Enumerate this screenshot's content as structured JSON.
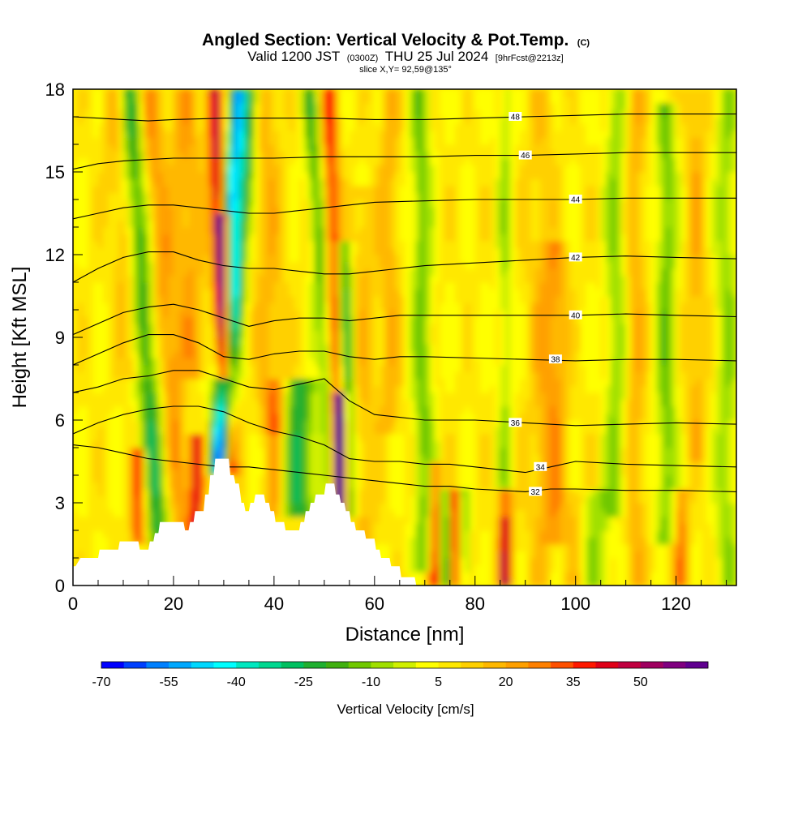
{
  "title": {
    "main": "Angled Section: Vertical Velocity & Pot.Temp.",
    "main_suffix": "(C)",
    "valid_prefix": "Valid 1200 JST",
    "valid_z": "(0300Z)",
    "valid_date": "THU 25 Jul 2024",
    "fcst": "[9hrFcst@2213z]",
    "slice": "slice X,Y= 92,59@135°"
  },
  "chart_data": {
    "type": "heatmap",
    "xlabel": "Distance [nm]",
    "ylabel": "Height [Kft MSL]",
    "xlim": [
      0,
      132
    ],
    "ylim": [
      0,
      18
    ],
    "x_ticks": [
      "0",
      "20",
      "40",
      "60",
      "80",
      "100",
      "120"
    ],
    "x_tick_values": [
      0,
      20,
      40,
      60,
      80,
      100,
      120
    ],
    "y_ticks": [
      "0",
      "3",
      "6",
      "9",
      "12",
      "15",
      "18"
    ],
    "y_tick_values": [
      0,
      3,
      6,
      9,
      12,
      15,
      18
    ],
    "colorbar": {
      "label": "Vertical Velocity [cm/s]",
      "tick_labels": [
        "-70",
        "-55",
        "-40",
        "-25",
        "-10",
        "5",
        "20",
        "35",
        "50"
      ],
      "tick_values": [
        -70,
        -55,
        -40,
        -25,
        -10,
        5,
        20,
        35,
        50
      ],
      "levels": [
        -70,
        -65,
        -60,
        -55,
        -50,
        -45,
        -40,
        -35,
        -30,
        -25,
        -20,
        -15,
        -10,
        -5,
        0,
        5,
        10,
        15,
        20,
        25,
        30,
        35,
        40,
        45,
        50,
        55,
        60
      ],
      "colors": [
        "#0000ff",
        "#0040ff",
        "#0080ff",
        "#00a8ff",
        "#00d8ff",
        "#00ffff",
        "#00e8c0",
        "#00d890",
        "#00c060",
        "#20b030",
        "#40b010",
        "#70c800",
        "#a0e000",
        "#d0f000",
        "#ffff00",
        "#ffe800",
        "#ffd000",
        "#ffb800",
        "#ffa000",
        "#ff8000",
        "#ff5000",
        "#ff1800",
        "#e00018",
        "#c00040",
        "#a00060",
        "#800080",
        "#600090"
      ]
    },
    "terrain": [
      [
        0,
        0.7
      ],
      [
        0.5,
        0.7
      ],
      [
        1.5,
        1.0
      ],
      [
        5,
        1.0
      ],
      [
        5.3,
        1.3
      ],
      [
        9,
        1.3
      ],
      [
        9.3,
        1.6
      ],
      [
        13,
        1.6
      ],
      [
        13.3,
        1.3
      ],
      [
        15,
        1.3
      ],
      [
        15.3,
        1.6
      ],
      [
        16,
        1.6
      ],
      [
        16.3,
        1.9
      ],
      [
        17,
        1.9
      ],
      [
        17.3,
        2.3
      ],
      [
        22,
        2.3
      ],
      [
        22.3,
        2.0
      ],
      [
        23,
        2.0
      ],
      [
        23.3,
        2.3
      ],
      [
        24,
        2.3
      ],
      [
        24.3,
        2.7
      ],
      [
        26,
        2.7
      ],
      [
        26.3,
        3.3
      ],
      [
        27,
        3.3
      ],
      [
        27.3,
        4.0
      ],
      [
        28,
        4.0
      ],
      [
        28.3,
        4.6
      ],
      [
        31,
        4.6
      ],
      [
        31.3,
        4.0
      ],
      [
        32,
        4.0
      ],
      [
        32.3,
        3.7
      ],
      [
        33,
        3.7
      ],
      [
        33.3,
        3.3
      ],
      [
        33.5,
        3.0
      ],
      [
        34,
        3.0
      ],
      [
        34.3,
        2.7
      ],
      [
        35,
        2.7
      ],
      [
        35.3,
        3.0
      ],
      [
        36,
        3.0
      ],
      [
        36.3,
        3.3
      ],
      [
        38,
        3.3
      ],
      [
        38.3,
        3.0
      ],
      [
        39,
        3.0
      ],
      [
        39.3,
        2.7
      ],
      [
        40,
        2.7
      ],
      [
        40.3,
        2.3
      ],
      [
        42,
        2.3
      ],
      [
        42.3,
        2.0
      ],
      [
        45,
        2.0
      ],
      [
        45.3,
        2.3
      ],
      [
        46,
        2.3
      ],
      [
        46.3,
        2.7
      ],
      [
        47,
        2.7
      ],
      [
        47.3,
        3.0
      ],
      [
        48,
        3.0
      ],
      [
        48.3,
        3.3
      ],
      [
        50,
        3.3
      ],
      [
        50.3,
        3.7
      ],
      [
        52,
        3.7
      ],
      [
        52.3,
        3.3
      ],
      [
        53,
        3.3
      ],
      [
        53.3,
        3.0
      ],
      [
        54,
        3.0
      ],
      [
        54.3,
        2.7
      ],
      [
        55,
        2.7
      ],
      [
        55.3,
        2.3
      ],
      [
        56,
        2.3
      ],
      [
        56.3,
        2.0
      ],
      [
        58,
        2.0
      ],
      [
        58.3,
        1.7
      ],
      [
        60,
        1.7
      ],
      [
        60.3,
        1.3
      ],
      [
        61,
        1.3
      ],
      [
        61.3,
        1.0
      ],
      [
        63,
        1.0
      ],
      [
        63.3,
        0.7
      ],
      [
        65,
        0.7
      ],
      [
        65.3,
        0.3
      ],
      [
        68,
        0.3
      ],
      [
        68.3,
        0
      ],
      [
        132,
        0
      ]
    ],
    "isentropes": [
      {
        "label": "32",
        "label_at": [
          92,
          3.4
        ],
        "points": [
          [
            0,
            5.1
          ],
          [
            5,
            5.0
          ],
          [
            10,
            4.8
          ],
          [
            15,
            4.6
          ],
          [
            20,
            4.5
          ],
          [
            25,
            4.4
          ],
          [
            30,
            4.3
          ],
          [
            35,
            4.3
          ],
          [
            40,
            4.2
          ],
          [
            45,
            4.1
          ],
          [
            50,
            4.0
          ],
          [
            55,
            3.9
          ],
          [
            60,
            3.8
          ],
          [
            65,
            3.7
          ],
          [
            70,
            3.6
          ],
          [
            75,
            3.6
          ],
          [
            80,
            3.5
          ],
          [
            85,
            3.45
          ],
          [
            90,
            3.4
          ],
          [
            95,
            3.5
          ],
          [
            100,
            3.5
          ],
          [
            110,
            3.45
          ],
          [
            120,
            3.45
          ],
          [
            132,
            3.4
          ]
        ]
      },
      {
        "label": "34",
        "label_at": [
          93,
          4.3
        ],
        "points": [
          [
            0,
            5.5
          ],
          [
            5,
            5.9
          ],
          [
            10,
            6.2
          ],
          [
            15,
            6.4
          ],
          [
            20,
            6.5
          ],
          [
            25,
            6.5
          ],
          [
            30,
            6.3
          ],
          [
            35,
            5.9
          ],
          [
            40,
            5.6
          ],
          [
            45,
            5.4
          ],
          [
            50,
            5.1
          ],
          [
            55,
            4.6
          ],
          [
            60,
            4.5
          ],
          [
            65,
            4.5
          ],
          [
            70,
            4.4
          ],
          [
            75,
            4.4
          ],
          [
            80,
            4.3
          ],
          [
            85,
            4.2
          ],
          [
            90,
            4.1
          ],
          [
            95,
            4.3
          ],
          [
            100,
            4.5
          ],
          [
            110,
            4.4
          ],
          [
            120,
            4.35
          ],
          [
            132,
            4.3
          ]
        ]
      },
      {
        "label": "36",
        "label_at": [
          88,
          5.9
        ],
        "points": [
          [
            0,
            7.0
          ],
          [
            5,
            7.2
          ],
          [
            10,
            7.5
          ],
          [
            15,
            7.6
          ],
          [
            20,
            7.8
          ],
          [
            25,
            7.8
          ],
          [
            30,
            7.5
          ],
          [
            35,
            7.2
          ],
          [
            40,
            7.1
          ],
          [
            45,
            7.3
          ],
          [
            50,
            7.5
          ],
          [
            55,
            6.7
          ],
          [
            60,
            6.2
          ],
          [
            65,
            6.1
          ],
          [
            70,
            6.0
          ],
          [
            75,
            6.0
          ],
          [
            80,
            6.0
          ],
          [
            85,
            5.95
          ],
          [
            90,
            5.9
          ],
          [
            100,
            5.8
          ],
          [
            110,
            5.85
          ],
          [
            120,
            5.9
          ],
          [
            132,
            5.85
          ]
        ]
      },
      {
        "label": "38",
        "label_at": [
          96,
          8.2
        ],
        "points": [
          [
            0,
            8.0
          ],
          [
            5,
            8.4
          ],
          [
            10,
            8.8
          ],
          [
            15,
            9.1
          ],
          [
            20,
            9.1
          ],
          [
            25,
            8.8
          ],
          [
            30,
            8.3
          ],
          [
            35,
            8.2
          ],
          [
            40,
            8.4
          ],
          [
            45,
            8.5
          ],
          [
            50,
            8.5
          ],
          [
            55,
            8.3
          ],
          [
            60,
            8.2
          ],
          [
            65,
            8.3
          ],
          [
            70,
            8.3
          ],
          [
            80,
            8.25
          ],
          [
            90,
            8.2
          ],
          [
            100,
            8.15
          ],
          [
            110,
            8.2
          ],
          [
            120,
            8.2
          ],
          [
            132,
            8.15
          ]
        ]
      },
      {
        "label": "40",
        "label_at": [
          100,
          9.8
        ],
        "points": [
          [
            0,
            9.1
          ],
          [
            5,
            9.5
          ],
          [
            10,
            9.9
          ],
          [
            15,
            10.1
          ],
          [
            20,
            10.2
          ],
          [
            25,
            10.0
          ],
          [
            30,
            9.7
          ],
          [
            35,
            9.4
          ],
          [
            40,
            9.6
          ],
          [
            45,
            9.7
          ],
          [
            50,
            9.7
          ],
          [
            55,
            9.6
          ],
          [
            60,
            9.7
          ],
          [
            65,
            9.8
          ],
          [
            70,
            9.8
          ],
          [
            80,
            9.8
          ],
          [
            90,
            9.8
          ],
          [
            100,
            9.8
          ],
          [
            110,
            9.85
          ],
          [
            120,
            9.8
          ],
          [
            132,
            9.75
          ]
        ]
      },
      {
        "label": "42",
        "label_at": [
          100,
          11.9
        ],
        "points": [
          [
            0,
            11.0
          ],
          [
            5,
            11.5
          ],
          [
            10,
            11.9
          ],
          [
            15,
            12.1
          ],
          [
            20,
            12.1
          ],
          [
            25,
            11.8
          ],
          [
            30,
            11.6
          ],
          [
            35,
            11.5
          ],
          [
            40,
            11.5
          ],
          [
            45,
            11.4
          ],
          [
            50,
            11.3
          ],
          [
            55,
            11.3
          ],
          [
            60,
            11.4
          ],
          [
            65,
            11.5
          ],
          [
            70,
            11.6
          ],
          [
            80,
            11.7
          ],
          [
            90,
            11.8
          ],
          [
            100,
            11.9
          ],
          [
            110,
            11.95
          ],
          [
            120,
            11.9
          ],
          [
            132,
            11.85
          ]
        ]
      },
      {
        "label": "44",
        "label_at": [
          100,
          14.0
        ],
        "points": [
          [
            0,
            13.3
          ],
          [
            5,
            13.5
          ],
          [
            10,
            13.7
          ],
          [
            15,
            13.8
          ],
          [
            20,
            13.8
          ],
          [
            25,
            13.7
          ],
          [
            30,
            13.6
          ],
          [
            35,
            13.5
          ],
          [
            40,
            13.5
          ],
          [
            45,
            13.6
          ],
          [
            50,
            13.7
          ],
          [
            55,
            13.8
          ],
          [
            60,
            13.9
          ],
          [
            70,
            13.95
          ],
          [
            80,
            14.0
          ],
          [
            90,
            14.0
          ],
          [
            100,
            14.0
          ],
          [
            110,
            14.05
          ],
          [
            120,
            14.05
          ],
          [
            132,
            14.05
          ]
        ]
      },
      {
        "label": "46",
        "label_at": [
          90,
          15.6
        ],
        "points": [
          [
            0,
            15.1
          ],
          [
            5,
            15.3
          ],
          [
            10,
            15.4
          ],
          [
            15,
            15.45
          ],
          [
            20,
            15.5
          ],
          [
            30,
            15.5
          ],
          [
            40,
            15.5
          ],
          [
            50,
            15.55
          ],
          [
            60,
            15.55
          ],
          [
            70,
            15.55
          ],
          [
            80,
            15.6
          ],
          [
            90,
            15.6
          ],
          [
            100,
            15.65
          ],
          [
            110,
            15.7
          ],
          [
            120,
            15.7
          ],
          [
            132,
            15.7
          ]
        ]
      },
      {
        "label": "48",
        "label_at": [
          88,
          17.0
        ],
        "points": [
          [
            0,
            17.0
          ],
          [
            10,
            16.9
          ],
          [
            15,
            16.85
          ],
          [
            20,
            16.9
          ],
          [
            30,
            16.95
          ],
          [
            40,
            16.95
          ],
          [
            50,
            16.95
          ],
          [
            60,
            16.9
          ],
          [
            70,
            16.9
          ],
          [
            80,
            16.95
          ],
          [
            90,
            17.0
          ],
          [
            100,
            17.05
          ],
          [
            110,
            17.1
          ],
          [
            120,
            17.1
          ],
          [
            132,
            17.1
          ]
        ]
      }
    ]
  }
}
